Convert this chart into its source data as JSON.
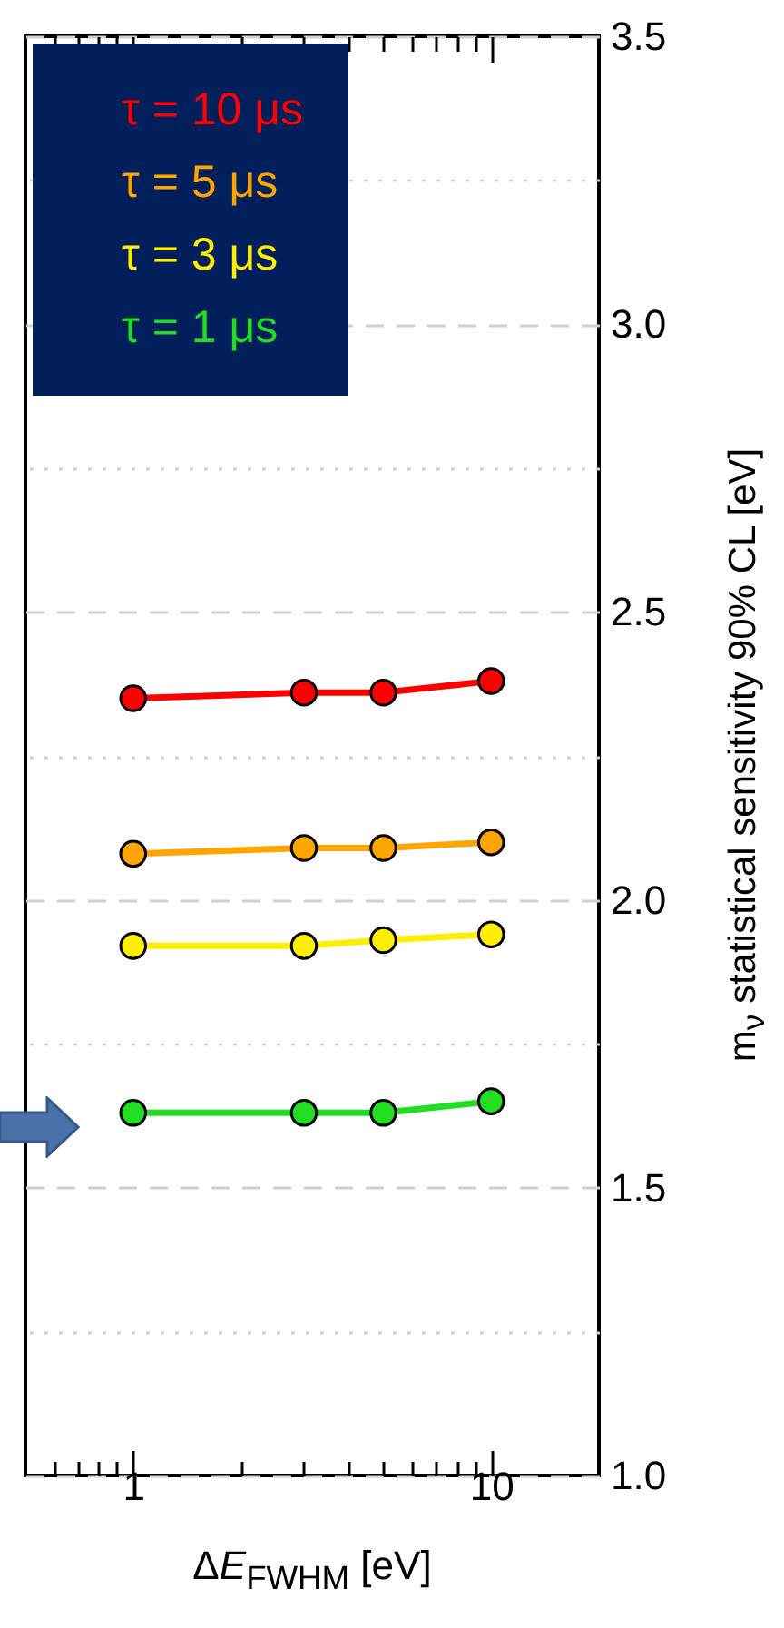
{
  "chart_data": {
    "type": "line",
    "xlabel": "ΔE$_{FWHM}$ [eV]",
    "ylabel": "m$_{ν}$ statistical sensitivity 90% CL [eV]",
    "x": [
      1,
      3,
      5,
      10
    ],
    "series": [
      {
        "name": "τ = 10 μs",
        "color": "#ff0000",
        "values": [
          2.35,
          2.36,
          2.36,
          2.38
        ]
      },
      {
        "name": "τ = 5 μs",
        "color": "#ffa500",
        "values": [
          2.08,
          2.09,
          2.09,
          2.1
        ]
      },
      {
        "name": "τ = 3 μs",
        "color": "#ffee00",
        "values": [
          1.92,
          1.92,
          1.93,
          1.94
        ]
      },
      {
        "name": "τ = 1 μs",
        "color": "#22dd22",
        "values": [
          1.63,
          1.63,
          1.63,
          1.65
        ]
      }
    ],
    "log": "x",
    "xlim": [
      0.5,
      20
    ],
    "xticks": [
      {
        "value": 0.6,
        "label": null
      },
      {
        "value": 0.7,
        "label": null
      },
      {
        "value": 0.8,
        "label": null
      },
      {
        "value": 0.9,
        "label": null
      },
      1,
      {
        "value": 2,
        "label": null
      },
      {
        "value": 3,
        "label": null
      },
      {
        "value": 4,
        "label": null
      },
      {
        "value": 5,
        "label": null
      },
      {
        "value": 6,
        "label": null
      },
      {
        "value": 7,
        "label": null
      },
      {
        "value": 8,
        "label": null
      },
      {
        "value": 9,
        "label": null
      },
      10
    ],
    "ylim": [
      1.0,
      3.5
    ],
    "yticks": [
      {
        "value": 1.0,
        "label": "1.0"
      },
      {
        "value": 1.25,
        "label": null
      },
      {
        "value": 1.5,
        "label": "1.5"
      },
      {
        "value": 1.75,
        "label": null
      },
      {
        "value": 2.0,
        "label": "2.0"
      },
      {
        "value": 2.25,
        "label": null
      },
      {
        "value": 2.5,
        "label": "2.5"
      },
      {
        "value": 2.75,
        "label": null
      },
      {
        "value": 3.0,
        "label": "3.0"
      },
      {
        "value": 3.25,
        "label": null
      },
      {
        "value": 3.5,
        "label": "3.5"
      }
    ],
    "grid": "y",
    "legend": "top left",
    "marker": "circle",
    "line_style": "solid"
  }
}
